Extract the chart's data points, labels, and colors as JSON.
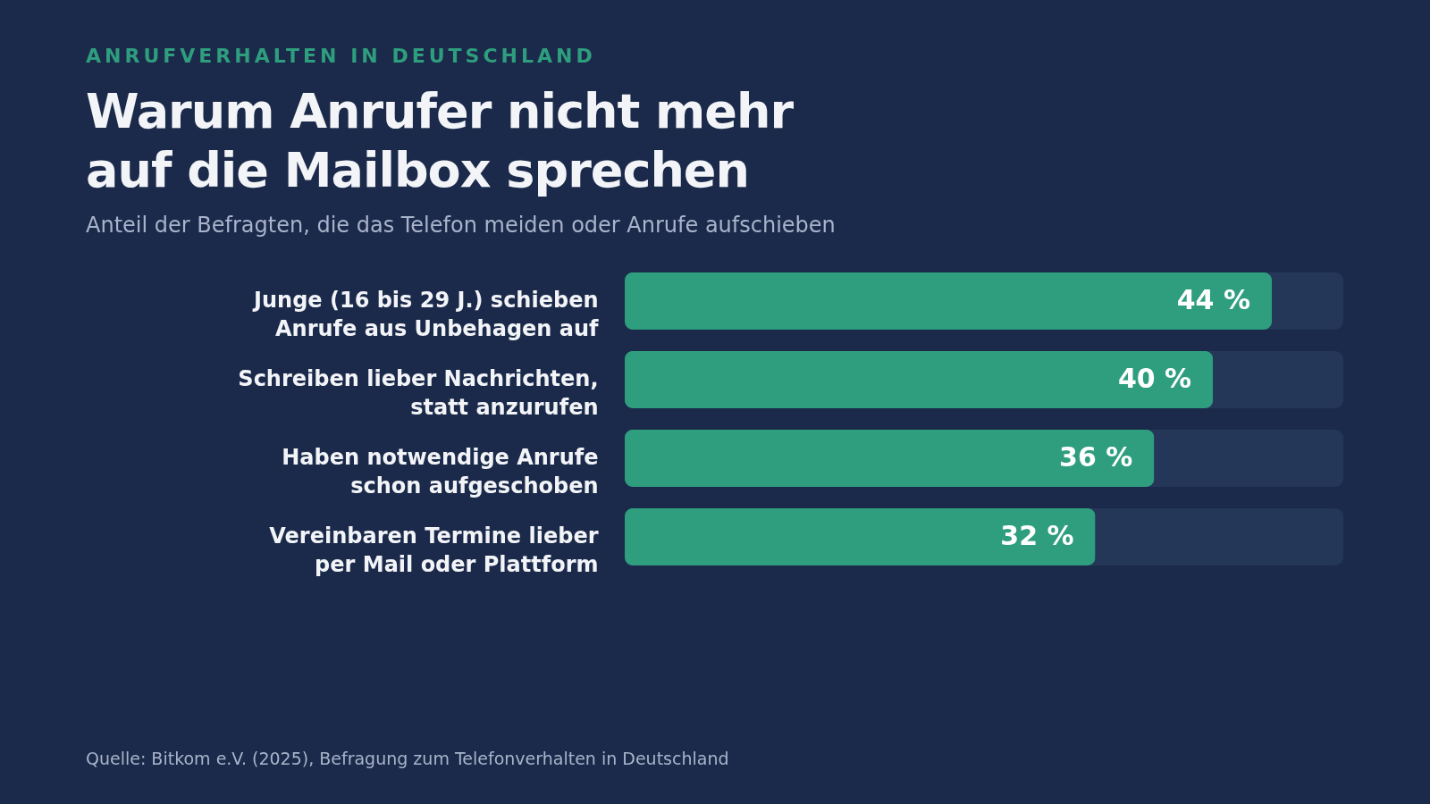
{
  "chart_data": {
    "type": "bar",
    "orientation": "horizontal",
    "title": "Warum Anrufer nicht mehr auf die Mailbox sprechen",
    "subtitle": "Anteil der Befragten, die das Telefon meiden oder Anrufe aufschieben",
    "categories": [
      "Junge (16 bis 29 J.) schieben Anrufe aus Unbehagen auf",
      "Schreiben lieber Nachrichten, statt anzurufen",
      "Haben notwendige Anrufe schon aufgeschoben",
      "Vereinbaren Termine lieber per Mail oder Plattform"
    ],
    "values": [
      44,
      40,
      36,
      32
    ],
    "value_labels": [
      "44 %",
      "40 %",
      "36 %",
      "32 %"
    ],
    "color": "#2e9e7e",
    "annotations": [
      "ANRUFVERHALTEN IN DEUTSCHLAND",
      "Quelle: Bitkom e.V. (2025), Befragung zum Telefonverhalten in Deutschland"
    ]
  }
}
